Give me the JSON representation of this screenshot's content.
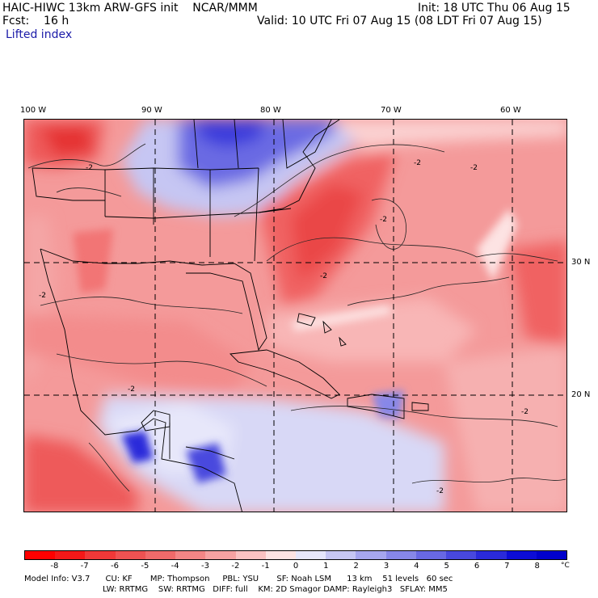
{
  "header": {
    "title": "HAIC-HIWC 13km ARW-GFS init    NCAR/MMM",
    "init": "Init: 18 UTC Thu 06 Aug 15",
    "fcst": "Fcst:    16 h",
    "valid": "Valid: 10 UTC Fri 07 Aug 15 (08 LDT Fri 07 Aug 15)",
    "field": "Lifted index"
  },
  "map": {
    "lon_labels": [
      "100 W",
      "90 W",
      "80 W",
      "70 W",
      "60 W"
    ],
    "lat_labels": [
      "30 N",
      "20 N"
    ],
    "contour_labels": [
      "-2",
      "-2",
      "-2",
      "-2",
      "-2",
      "-2",
      "-2",
      "-2",
      "-2"
    ]
  },
  "colorbar": {
    "ticks": [
      "-8",
      "-7",
      "-6",
      "-5",
      "-4",
      "-3",
      "-2",
      "-1",
      "0",
      "1",
      "2",
      "3",
      "4",
      "5",
      "6",
      "7",
      "8"
    ],
    "colors": [
      "#ff0000",
      "#f51818",
      "#f03838",
      "#ee5252",
      "#f06a6a",
      "#f38686",
      "#f6a2a2",
      "#fac2c2",
      "#fde3e3",
      "#e6e6fb",
      "#c6c6f3",
      "#a6a6ee",
      "#8787e8",
      "#6868e3",
      "#4848de",
      "#2a2ada",
      "#0c0cd6",
      "#0000cc"
    ],
    "unit": "°C"
  },
  "model_info": {
    "line1": "Model Info: V3.7      CU: KF       MP: Thompson     PBL: YSU       SF: Noah LSM      13 km    51 levels   60 sec",
    "line2": "LW: RRTMG    SW: RRTMG   DIFF: full    KM: 2D Smagor DAMP: Rayleigh3   SFLAY: MM5"
  }
}
